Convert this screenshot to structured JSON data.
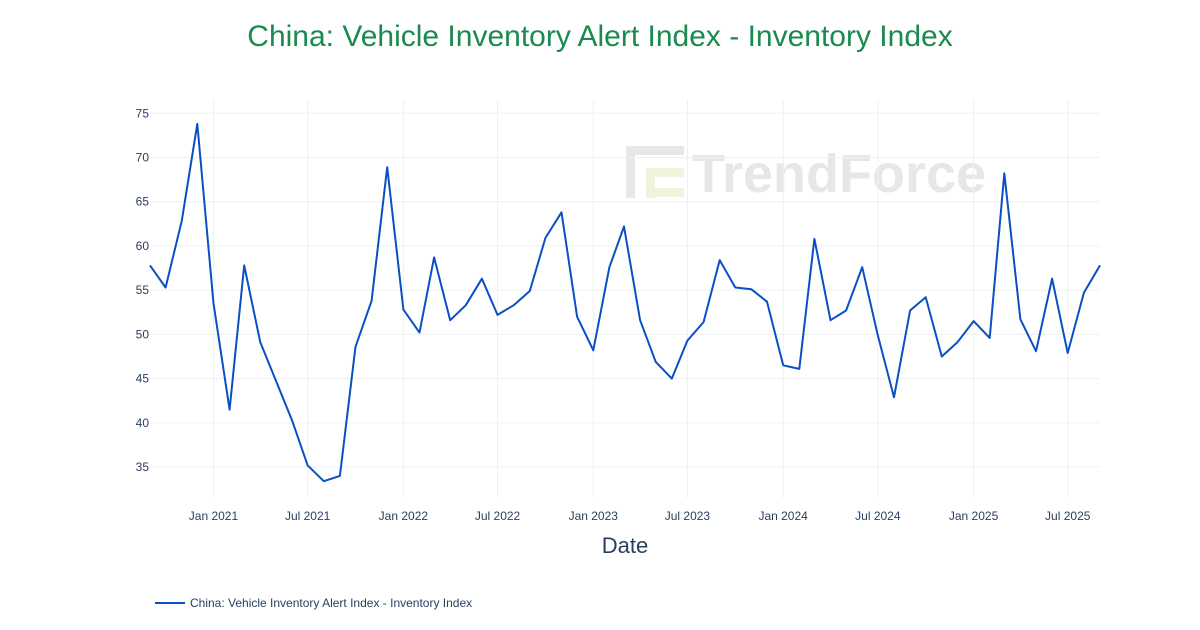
{
  "chart_data": {
    "type": "line",
    "title": "China: Vehicle Inventory Alert Index - Inventory Index",
    "xlabel": "Date",
    "ylabel": "",
    "watermark": "TrendForce",
    "line_color": "#0a4fc4",
    "title_color": "#1b8a4f",
    "grid": true,
    "legend_position": "bottom-left",
    "x_range": [
      "2020-09-01",
      "2025-09-01"
    ],
    "ylim": [
      31.5,
      76.5
    ],
    "x_ticks": [
      {
        "date": "2021-01-01",
        "label": "Jan 2021"
      },
      {
        "date": "2021-07-01",
        "label": "Jul 2021"
      },
      {
        "date": "2022-01-01",
        "label": "Jan 2022"
      },
      {
        "date": "2022-07-01",
        "label": "Jul 2022"
      },
      {
        "date": "2023-01-01",
        "label": "Jan 2023"
      },
      {
        "date": "2023-07-01",
        "label": "Jul 2023"
      },
      {
        "date": "2024-01-01",
        "label": "Jan 2024"
      },
      {
        "date": "2024-07-01",
        "label": "Jul 2024"
      },
      {
        "date": "2025-01-01",
        "label": "Jan 2025"
      },
      {
        "date": "2025-07-01",
        "label": "Jul 2025"
      }
    ],
    "y_ticks": [
      35,
      40,
      45,
      50,
      55,
      60,
      65,
      70,
      75
    ],
    "series": [
      {
        "name": "China: Vehicle Inventory Alert Index - Inventory Index",
        "x": [
          "2020-09",
          "2020-10",
          "2020-11",
          "2020-12",
          "2021-01",
          "2021-02",
          "2021-03",
          "2021-04",
          "2021-06",
          "2021-07",
          "2021-08",
          "2021-09",
          "2021-10",
          "2021-11",
          "2021-12",
          "2022-01",
          "2022-02",
          "2022-03",
          "2022-04",
          "2022-05",
          "2022-06",
          "2022-07",
          "2022-08",
          "2022-09",
          "2022-10",
          "2022-11",
          "2022-12",
          "2023-01",
          "2023-02",
          "2023-03",
          "2023-04",
          "2023-05",
          "2023-06",
          "2023-07",
          "2023-08",
          "2023-09",
          "2023-10",
          "2023-11",
          "2023-12",
          "2024-01",
          "2024-02",
          "2024-03",
          "2024-04",
          "2024-05",
          "2024-06",
          "2024-07",
          "2024-08",
          "2024-09",
          "2024-10",
          "2024-11",
          "2024-12",
          "2025-01",
          "2025-02",
          "2025-03",
          "2025-04",
          "2025-05",
          "2025-06",
          "2025-07",
          "2025-08",
          "2025-09"
        ],
        "y": [
          57.8,
          55.3,
          62.8,
          73.8,
          53.5,
          41.5,
          57.8,
          49.1,
          40.3,
          35.2,
          33.4,
          34.0,
          48.6,
          53.8,
          68.9,
          52.8,
          50.2,
          58.7,
          51.6,
          53.3,
          56.3,
          52.2,
          53.3,
          54.9,
          60.9,
          63.8,
          52.0,
          48.2,
          57.6,
          62.2,
          51.6,
          46.9,
          45.0,
          49.3,
          51.4,
          58.4,
          55.3,
          55.1,
          53.7,
          46.5,
          46.1,
          60.8,
          51.6,
          52.7,
          57.6,
          49.9,
          42.9,
          52.7,
          54.2,
          47.5,
          49.1,
          51.5,
          49.6,
          68.2,
          51.7,
          48.1,
          56.3,
          47.9,
          54.7,
          57.8
        ]
      }
    ]
  }
}
